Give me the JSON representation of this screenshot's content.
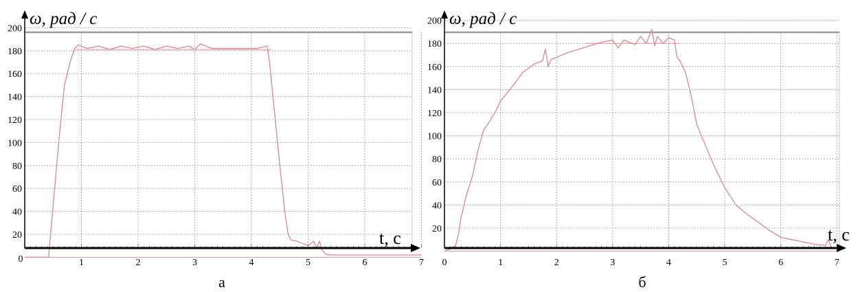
{
  "chart_data": [
    {
      "type": "line",
      "caption": "а",
      "ylabel": "ω, рад / с",
      "xlabel": "t, с",
      "xlim": [
        0,
        7
      ],
      "ylim": [
        0,
        200
      ],
      "xticks": [
        "1",
        "2",
        "3",
        "4",
        "5",
        "6",
        "7"
      ],
      "yticks": [
        "20",
        "40",
        "60",
        "80",
        "100",
        "120",
        "140",
        "160",
        "180",
        "200"
      ],
      "origin_label": "0",
      "grid": true,
      "line_color": "#d4909a",
      "reference_lines": [
        {
          "y": 0,
          "x": [
            0,
            7
          ]
        },
        {
          "y": 181,
          "x": [
            0.9,
            4.35
          ]
        }
      ],
      "series": [
        {
          "x": [
            0,
            0.42,
            0.5,
            0.6,
            0.7,
            0.8,
            0.88,
            0.95,
            1.1,
            1.3,
            1.5,
            1.7,
            1.9,
            2.1,
            2.3,
            2.5,
            2.7,
            2.9,
            3.0,
            3.1,
            3.3,
            3.5,
            3.7,
            3.9,
            4.1,
            4.28,
            4.32,
            4.4,
            4.5,
            4.6,
            4.65,
            4.7,
            4.8,
            4.9,
            5.0,
            5.1,
            5.15,
            5.2,
            5.25,
            5.3,
            5.35,
            5.5,
            6.0,
            6.5,
            7.0
          ],
          "y": [
            0,
            0,
            45,
            100,
            150,
            170,
            182,
            185,
            182,
            184,
            181,
            184,
            182,
            184,
            181,
            184,
            182,
            184,
            181,
            186,
            182,
            182,
            182,
            182,
            182,
            184,
            170,
            130,
            80,
            35,
            20,
            15,
            14,
            12,
            10,
            14,
            8,
            14,
            6,
            3,
            2,
            2,
            2,
            2,
            2
          ]
        }
      ]
    },
    {
      "type": "line",
      "caption": "б",
      "ylabel": "ω, рад / с",
      "xlabel": "t, с",
      "xlim": [
        0,
        7
      ],
      "ylim": [
        0,
        200
      ],
      "xticks": [
        "0",
        "1",
        "2",
        "3",
        "4",
        "5",
        "6",
        "7"
      ],
      "yticks": [
        "20",
        "40",
        "60",
        "80",
        "100",
        "120",
        "140",
        "160",
        "180",
        "200"
      ],
      "grid": true,
      "line_color": "#d4909a",
      "reference_lines": [
        {
          "y": 0,
          "x": [
            0,
            7
          ]
        },
        {
          "y": 180,
          "x": [
            2.5,
            4.2
          ]
        }
      ],
      "series": [
        {
          "x": [
            0,
            0.1,
            0.2,
            0.25,
            0.3,
            0.4,
            0.5,
            0.6,
            0.7,
            0.8,
            0.9,
            1.0,
            1.2,
            1.4,
            1.6,
            1.75,
            1.8,
            1.85,
            1.9,
            2.0,
            2.2,
            2.4,
            2.6,
            2.8,
            3.0,
            3.1,
            3.2,
            3.4,
            3.5,
            3.6,
            3.7,
            3.75,
            3.8,
            3.9,
            4.0,
            4.1,
            4.15,
            4.2,
            4.3,
            4.4,
            4.5,
            4.6,
            4.8,
            5.0,
            5.2,
            5.4,
            5.6,
            5.8,
            6.0,
            6.2,
            6.4,
            6.6,
            6.8,
            6.85,
            6.9,
            7.0
          ],
          "y": [
            0,
            2,
            5,
            15,
            30,
            50,
            65,
            88,
            105,
            112,
            120,
            130,
            142,
            155,
            162,
            165,
            175,
            160,
            166,
            168,
            172,
            175,
            178,
            181,
            183,
            176,
            183,
            179,
            186,
            180,
            192,
            178,
            186,
            180,
            185,
            183,
            168,
            165,
            155,
            135,
            110,
            98,
            75,
            55,
            40,
            32,
            25,
            18,
            12,
            10,
            8,
            6,
            5,
            10,
            3,
            2
          ]
        }
      ]
    }
  ]
}
